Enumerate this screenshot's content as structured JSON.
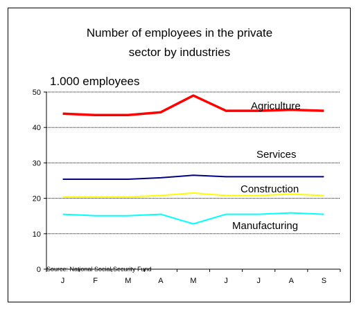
{
  "chart_data": {
    "type": "line",
    "title": "Number of employees in the private sector by industries",
    "title_lines": [
      "Number of employees in the private",
      "sector by industries"
    ],
    "ylabel": "1.000 employees",
    "xlabel": "",
    "categories": [
      "J",
      "F",
      "M",
      "A",
      "M",
      "J",
      "J",
      "A",
      "S"
    ],
    "ylim": [
      0,
      50
    ],
    "yticks": [
      "0",
      "10",
      "20",
      "30",
      "40",
      "50"
    ],
    "grid": "horizontal dotted",
    "source": "Source: National Social Security Fund",
    "series": [
      {
        "name": "Agriculture",
        "color": "#ff0000",
        "values": [
          43.9,
          43.5,
          43.5,
          44.3,
          49.0,
          44.7,
          44.7,
          45.0,
          44.7
        ]
      },
      {
        "name": "Services",
        "color": "#000080",
        "values": [
          25.4,
          25.4,
          25.4,
          25.8,
          26.5,
          26.1,
          26.1,
          26.1,
          26.1
        ]
      },
      {
        "name": "Construction",
        "color": "#ffff00",
        "values": [
          20.4,
          20.4,
          20.4,
          20.8,
          21.5,
          20.8,
          20.8,
          21.2,
          20.8
        ]
      },
      {
        "name": "Manufacturing",
        "color": "#00ffff",
        "values": [
          15.5,
          15.1,
          15.1,
          15.5,
          12.8,
          15.5,
          15.5,
          15.9,
          15.5
        ]
      }
    ]
  }
}
